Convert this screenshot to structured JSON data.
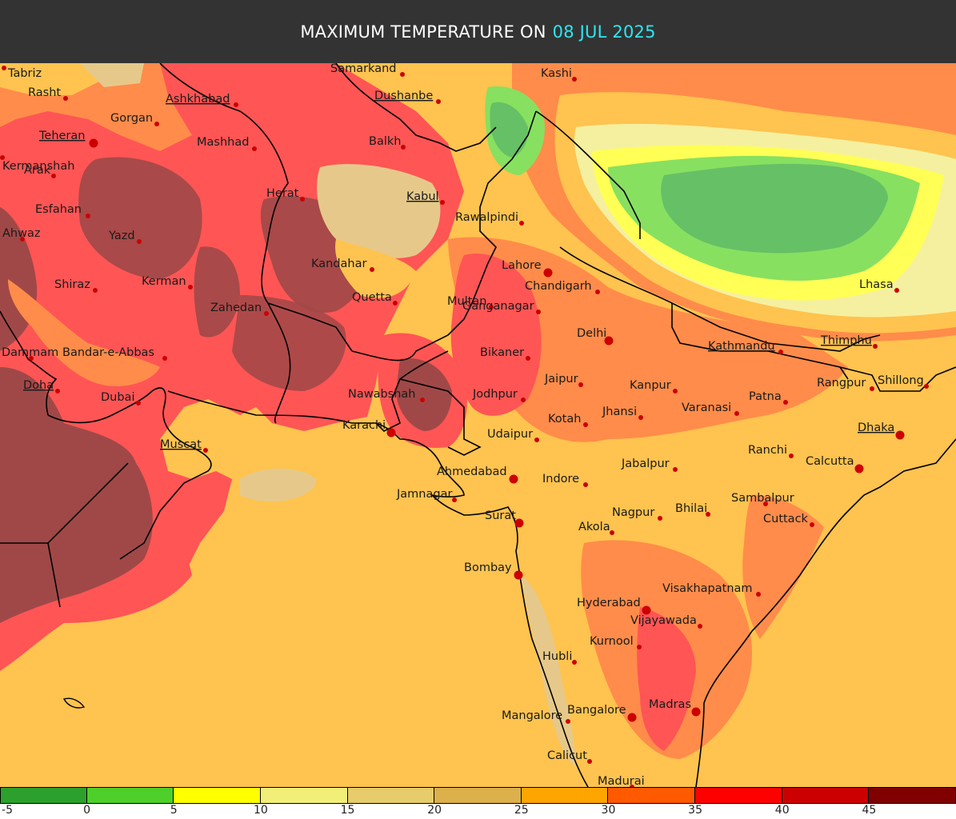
{
  "header": {
    "title_prefix": "MAXIMUM TEMPERATURE ON",
    "date": "08 JUL 2025",
    "date_color": "#2ee6f0"
  },
  "legend": {
    "ticks": [
      "-5",
      "0",
      "5",
      "10",
      "15",
      "20",
      "25",
      "30",
      "35",
      "40",
      "45"
    ],
    "colors": [
      "#2ca02c",
      "#4fcf2a",
      "#ffff00",
      "#f2ef78",
      "#e6cc6a",
      "#dcb04a",
      "#ffa500",
      "#ff5a00",
      "#ff0000",
      "#cc0000",
      "#800000"
    ]
  },
  "map": {
    "palette": {
      "hot_dark": "#a04848",
      "hot": "#ff5555",
      "warm": "#ff8c4a",
      "mild": "#ffc34f",
      "cool_tan": "#e6c98a",
      "pale": "#f5f0a0",
      "yellow": "#ffff55",
      "light_green": "#88e060",
      "green": "#66c066",
      "sea": "#ffc34f"
    },
    "cities": [
      {
        "name": "Tabriz",
        "capital": false
      },
      {
        "name": "Rasht",
        "capital": false
      },
      {
        "name": "Gorgan",
        "capital": false
      },
      {
        "name": "Ashkhabad",
        "capital": true
      },
      {
        "name": "Samarkand",
        "capital": false
      },
      {
        "name": "Dushanbe",
        "capital": true
      },
      {
        "name": "Kashi",
        "capital": false
      },
      {
        "name": "Teheran",
        "capital": true
      },
      {
        "name": "Kermanshah",
        "capital": false
      },
      {
        "name": "Mashhad",
        "capital": false
      },
      {
        "name": "Balkh",
        "capital": false
      },
      {
        "name": "Arak",
        "capital": false
      },
      {
        "name": "Herat",
        "capital": false
      },
      {
        "name": "Kabul",
        "capital": true
      },
      {
        "name": "Esfahan",
        "capital": false
      },
      {
        "name": "Rawalpindi",
        "capital": false
      },
      {
        "name": "Ahwaz",
        "capital": false
      },
      {
        "name": "Yazd",
        "capital": false
      },
      {
        "name": "Kandahar",
        "capital": false
      },
      {
        "name": "Lahore",
        "capital": false
      },
      {
        "name": "Shiraz",
        "capital": false
      },
      {
        "name": "Kerman",
        "capital": false
      },
      {
        "name": "Quetta",
        "capital": false
      },
      {
        "name": "Chandigarh",
        "capital": false
      },
      {
        "name": "Lhasa",
        "capital": false
      },
      {
        "name": "Zahedan",
        "capital": false
      },
      {
        "name": "Multan",
        "capital": false
      },
      {
        "name": "Ganganagar",
        "capital": false
      },
      {
        "name": "Delhi",
        "capital": false
      },
      {
        "name": "Dammam",
        "capital": false
      },
      {
        "name": "Bandar-e-Abbas",
        "capital": false
      },
      {
        "name": "Bikaner",
        "capital": false
      },
      {
        "name": "Kathmandu",
        "capital": true
      },
      {
        "name": "Thimphu",
        "capital": true
      },
      {
        "name": "Jaipur",
        "capital": false
      },
      {
        "name": "Kanpur",
        "capital": false
      },
      {
        "name": "Rangpur",
        "capital": false
      },
      {
        "name": "Shillong",
        "capital": false
      },
      {
        "name": "Doha",
        "capital": true
      },
      {
        "name": "Dubai",
        "capital": false
      },
      {
        "name": "Nawabshah",
        "capital": false
      },
      {
        "name": "Jodhpur",
        "capital": false
      },
      {
        "name": "Patna",
        "capital": false
      },
      {
        "name": "Varanasi",
        "capital": false
      },
      {
        "name": "Jhansi",
        "capital": false
      },
      {
        "name": "Kotah",
        "capital": false
      },
      {
        "name": "Karachi",
        "capital": false
      },
      {
        "name": "Dhaka",
        "capital": true
      },
      {
        "name": "Udaipur",
        "capital": false
      },
      {
        "name": "Muscat",
        "capital": true
      },
      {
        "name": "Ranchi",
        "capital": false
      },
      {
        "name": "Calcutta",
        "capital": false
      },
      {
        "name": "Ahmedabad",
        "capital": false
      },
      {
        "name": "Jabalpur",
        "capital": false
      },
      {
        "name": "Indore",
        "capital": false
      },
      {
        "name": "Jamnagar",
        "capital": false
      },
      {
        "name": "Sambalpur",
        "capital": false
      },
      {
        "name": "Bhilai",
        "capital": false
      },
      {
        "name": "Nagpur",
        "capital": false
      },
      {
        "name": "Surat",
        "capital": false
      },
      {
        "name": "Cuttack",
        "capital": false
      },
      {
        "name": "Akola",
        "capital": false
      },
      {
        "name": "Bombay",
        "capital": false
      },
      {
        "name": "Visakhapatnam",
        "capital": false
      },
      {
        "name": "Hyderabad",
        "capital": false
      },
      {
        "name": "Vijayawada",
        "capital": false
      },
      {
        "name": "Kurnool",
        "capital": false
      },
      {
        "name": "Hubli",
        "capital": false
      },
      {
        "name": "Madras",
        "capital": false
      },
      {
        "name": "Mangalore",
        "capital": false
      },
      {
        "name": "Bangalore",
        "capital": false
      },
      {
        "name": "Calicut",
        "capital": false
      },
      {
        "name": "Madurai",
        "capital": false
      }
    ]
  }
}
